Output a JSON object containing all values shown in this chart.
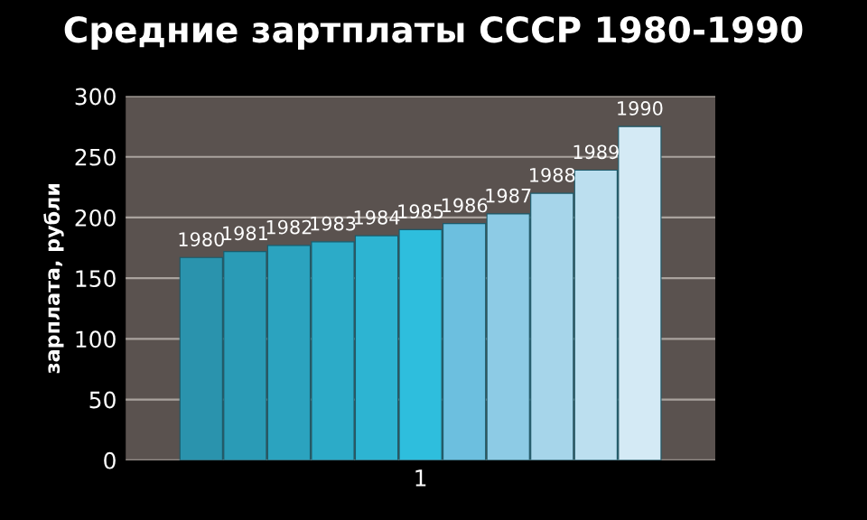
{
  "chart_data": {
    "type": "bar",
    "title": "Средние зартплаты СССР 1980-1990",
    "ylabel": "зарплата, рубли",
    "categories": [
      "1"
    ],
    "series": [
      {
        "name": "1980",
        "color": "#2a93ad",
        "values": [
          167
        ]
      },
      {
        "name": "1981",
        "color": "#2a9bb6",
        "values": [
          172
        ]
      },
      {
        "name": "1982",
        "color": "#2ba3bf",
        "values": [
          177
        ]
      },
      {
        "name": "1983",
        "color": "#2cabc8",
        "values": [
          180
        ]
      },
      {
        "name": "1984",
        "color": "#2db4d2",
        "values": [
          185
        ]
      },
      {
        "name": "1985",
        "color": "#2ebedd",
        "values": [
          190
        ]
      },
      {
        "name": "1986",
        "color": "#6cbfdf",
        "values": [
          195
        ]
      },
      {
        "name": "1987",
        "color": "#8dcbe5",
        "values": [
          203
        ]
      },
      {
        "name": "1988",
        "color": "#a6d5ea",
        "values": [
          220
        ]
      },
      {
        "name": "1989",
        "color": "#bcdfef",
        "values": [
          239
        ]
      },
      {
        "name": "1990",
        "color": "#d4eaf5",
        "values": [
          275
        ]
      }
    ],
    "ylim": [
      0,
      300
    ],
    "yticks": [
      0,
      50,
      100,
      150,
      200,
      250,
      300
    ],
    "grid": "y",
    "legend": false
  }
}
